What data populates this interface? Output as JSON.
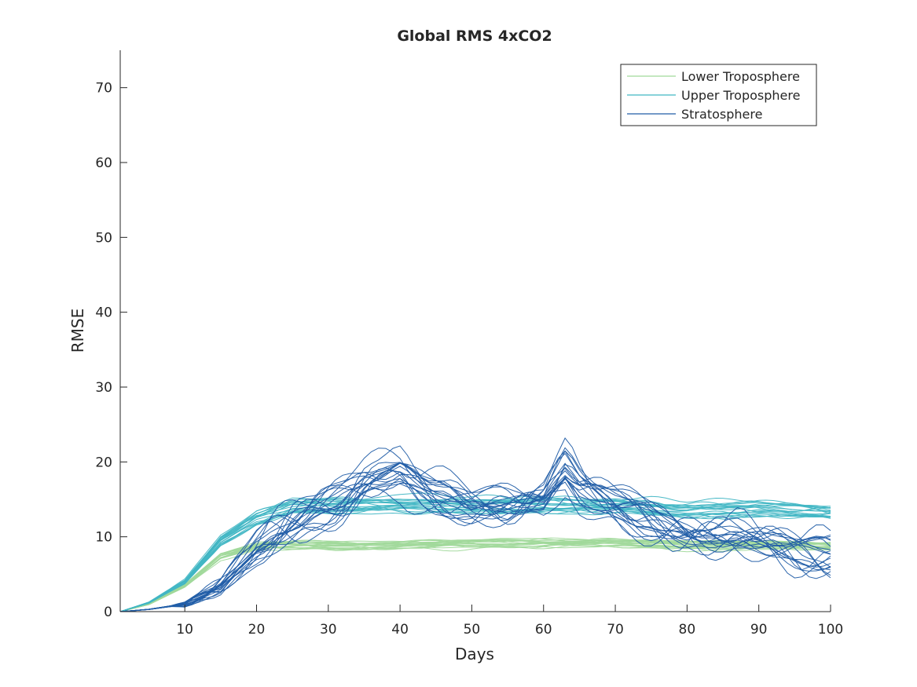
{
  "chart_data": {
    "type": "line",
    "title": "Global RMS 4xCO2",
    "xlabel": "Days",
    "ylabel": "RMSE",
    "xlim": [
      1,
      100
    ],
    "ylim": [
      0,
      75
    ],
    "xticks": [
      10,
      20,
      30,
      40,
      50,
      60,
      70,
      80,
      90,
      100
    ],
    "yticks": [
      0,
      10,
      20,
      30,
      40,
      50,
      60,
      70
    ],
    "grid": false,
    "legend": {
      "placement": "top-right",
      "entries": [
        "Lower Troposphere",
        "Upper Troposphere",
        "Stratosphere"
      ]
    },
    "series": [
      {
        "name": "Lower Troposphere",
        "color": "#a1d99b",
        "members": 20,
        "x": [
          1,
          5,
          10,
          15,
          20,
          25,
          30,
          40,
          50,
          60,
          70,
          80,
          90,
          100
        ],
        "values": [
          0,
          1.0,
          3.5,
          7.5,
          8.8,
          9.0,
          9.0,
          9.0,
          9.2,
          9.3,
          9.3,
          9.0,
          9.0,
          8.8
        ]
      },
      {
        "name": "Upper Troposphere",
        "color": "#41b6c4",
        "members": 20,
        "x": [
          1,
          5,
          10,
          15,
          20,
          25,
          30,
          40,
          50,
          60,
          70,
          80,
          90,
          100
        ],
        "values": [
          0,
          1.2,
          4.0,
          9.5,
          12.5,
          14.0,
          14.0,
          14.2,
          14.2,
          14.2,
          14.0,
          13.5,
          13.8,
          13.2
        ]
      },
      {
        "name": "Stratosphere",
        "color": "#225ea8",
        "members": 20,
        "x": [
          1,
          5,
          10,
          15,
          20,
          25,
          30,
          35,
          40,
          45,
          50,
          55,
          60,
          63,
          65,
          70,
          75,
          80,
          85,
          90,
          95,
          100
        ],
        "values": [
          0,
          0.3,
          1.0,
          3.5,
          8.5,
          11.5,
          14.0,
          16.5,
          18.0,
          16.0,
          14.5,
          14.5,
          14.5,
          18.0,
          16.0,
          14.0,
          12.5,
          10.5,
          9.5,
          9.0,
          8.5,
          8.0
        ]
      }
    ]
  }
}
